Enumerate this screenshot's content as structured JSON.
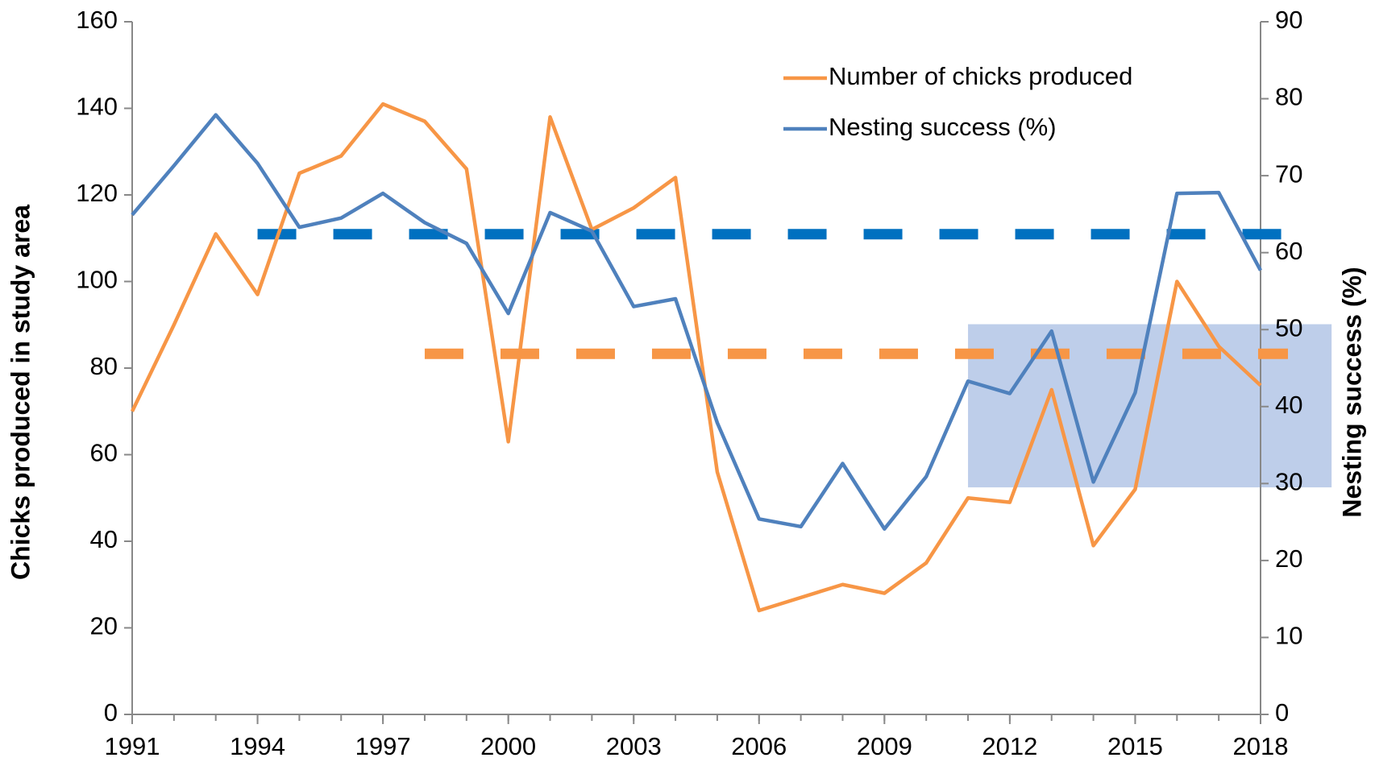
{
  "chart_data": {
    "type": "line",
    "y_label": "Chicks produced in study area",
    "y2_label": "Nesting success (%)",
    "x": [
      1991,
      1992,
      1993,
      1994,
      1995,
      1996,
      1997,
      1998,
      1999,
      2000,
      2001,
      2002,
      2003,
      2004,
      2005,
      2006,
      2007,
      2008,
      2009,
      2010,
      2011,
      2012,
      2013,
      2014,
      2015,
      2016,
      2017,
      2018
    ],
    "series": [
      {
        "name": "Number of chicks produced",
        "color": "#f79646",
        "values": [
          70,
          90,
          111,
          97,
          125,
          129,
          141,
          137,
          126,
          63,
          138,
          112,
          117,
          124,
          56,
          24,
          27,
          30,
          28,
          35,
          50,
          49,
          75,
          39,
          52,
          100,
          85,
          76
        ]
      },
      {
        "name": "Nesting success (%)",
        "color": "#4f81bd",
        "axis": "y2",
        "values": [
          64.9,
          71.3,
          77.9,
          71.6,
          63.3,
          64.5,
          67.7,
          63.9,
          61.2,
          52.1,
          65.2,
          62.8,
          53.0,
          54.0,
          37.9,
          25.4,
          24.4,
          32.6,
          24.1,
          30.9,
          43.3,
          41.7,
          49.8,
          30.2,
          41.8,
          67.7,
          67.8,
          57.7
        ]
      }
    ],
    "reference_lines": [
      {
        "axis": "y2",
        "value": 62.4,
        "x": [
          1994,
          2018
        ],
        "color": "#0070c0"
      },
      {
        "axis": "y",
        "value": 83.3,
        "x": [
          1998,
          2018
        ],
        "color": "#f79646"
      }
    ],
    "highlight": {
      "x": [
        2011,
        2019.7
      ],
      "y2": [
        29.5,
        50.7
      ],
      "color": "#4472c4"
    },
    "xlim": [
      1991,
      2018
    ],
    "xticks": [
      1991,
      1994,
      1997,
      2000,
      2003,
      2006,
      2009,
      2012,
      2015,
      2018
    ],
    "ylim": [
      0,
      160
    ],
    "yticks": [
      0,
      20,
      40,
      60,
      80,
      100,
      120,
      140,
      160
    ],
    "y2lim": [
      0,
      90
    ],
    "y2ticks": [
      0,
      10,
      20,
      30,
      40,
      50,
      60,
      70,
      80,
      90
    ],
    "legend": "top-center"
  }
}
